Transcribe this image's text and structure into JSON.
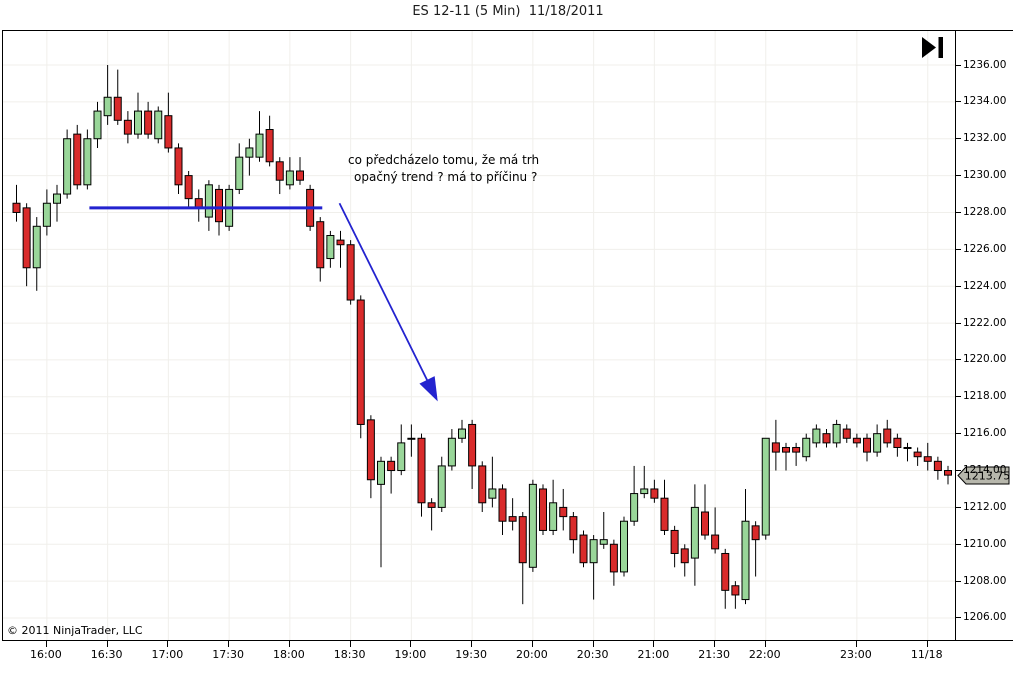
{
  "title": "ES 12-11 (5 Min)  11/18/2011",
  "copyright": "© 2011 NinjaTrader, LLC",
  "price_badge": "1213.75",
  "annotation": {
    "line1": "co předcházelo tomu, že má trh",
    "line2": "opačný trend ? má to příčinu ?"
  },
  "colors": {
    "up_fill": "#99d699",
    "down_fill": "#d92b2b",
    "outline": "#000000",
    "wick": "#000000",
    "grid": "#f0efeb",
    "drawing_blue": "#2323cf",
    "badge_bg": "#b7b7ac",
    "background": "#ffffff",
    "axis_text": "#000000"
  },
  "chart_data": {
    "type": "candlestick",
    "title": "ES 12-11 (5 Min)  11/18/2011",
    "instrument": "ES 12-11",
    "interval": "5 Min",
    "date": "11/18/2011",
    "grid": true,
    "y_axis": {
      "side": "right",
      "min": 1206.0,
      "max": 1236.0,
      "step": 2.0,
      "ticks": [
        "1236.00",
        "1234.00",
        "1232.00",
        "1230.00",
        "1228.00",
        "1226.00",
        "1224.00",
        "1222.00",
        "1220.00",
        "1218.00",
        "1216.00",
        "1214.00",
        "1212.00",
        "1210.00",
        "1208.00",
        "1206.00"
      ],
      "last_price": 1213.75
    },
    "x_axis": {
      "labels": [
        {
          "text": "16:00",
          "index": 3
        },
        {
          "text": "16:30",
          "index": 9
        },
        {
          "text": "17:00",
          "index": 15
        },
        {
          "text": "17:30",
          "index": 21
        },
        {
          "text": "18:00",
          "index": 27
        },
        {
          "text": "18:30",
          "index": 33
        },
        {
          "text": "19:00",
          "index": 39
        },
        {
          "text": "19:30",
          "index": 45
        },
        {
          "text": "20:00",
          "index": 51
        },
        {
          "text": "20:30",
          "index": 57
        },
        {
          "text": "21:00",
          "index": 63
        },
        {
          "text": "21:30",
          "index": 69
        },
        {
          "text": "22:00",
          "index": 74
        },
        {
          "text": "23:00",
          "index": 83
        },
        {
          "text": "11/18",
          "index": 90
        }
      ]
    },
    "drawings": {
      "hline": {
        "price": 1228.25,
        "from_index": 7.2,
        "to_index": 30.2
      },
      "arrow": {
        "from": {
          "index": 31.9,
          "price": 1228.5
        },
        "to": {
          "index": 41.6,
          "price": 1217.75
        }
      }
    },
    "candles_ohlc": [
      [
        1228.5,
        1229.5,
        1227.5,
        1228.0
      ],
      [
        1228.25,
        1228.5,
        1224.0,
        1225.0
      ],
      [
        1225.0,
        1227.75,
        1223.75,
        1227.25
      ],
      [
        1227.25,
        1229.25,
        1226.75,
        1228.5
      ],
      [
        1228.5,
        1229.5,
        1227.5,
        1229.0
      ],
      [
        1229.0,
        1232.5,
        1228.75,
        1232.0
      ],
      [
        1232.25,
        1232.75,
        1229.25,
        1229.5
      ],
      [
        1229.5,
        1232.5,
        1229.25,
        1232.0
      ],
      [
        1232.0,
        1234.0,
        1231.5,
        1233.5
      ],
      [
        1233.25,
        1236.0,
        1232.75,
        1234.25
      ],
      [
        1234.25,
        1235.75,
        1232.75,
        1233.0
      ],
      [
        1233.0,
        1233.5,
        1231.75,
        1232.25
      ],
      [
        1232.25,
        1234.5,
        1232.0,
        1233.5
      ],
      [
        1233.5,
        1234.0,
        1232.0,
        1232.25
      ],
      [
        1232.0,
        1233.75,
        1231.75,
        1233.5
      ],
      [
        1233.25,
        1234.5,
        1231.25,
        1231.5
      ],
      [
        1231.5,
        1231.75,
        1229.0,
        1229.5
      ],
      [
        1230.0,
        1230.25,
        1228.25,
        1228.75
      ],
      [
        1228.75,
        1229.25,
        1227.5,
        1228.25
      ],
      [
        1227.75,
        1229.75,
        1227.0,
        1229.5
      ],
      [
        1229.25,
        1229.5,
        1226.75,
        1227.5
      ],
      [
        1227.25,
        1229.5,
        1227.0,
        1229.25
      ],
      [
        1229.25,
        1231.75,
        1229.0,
        1231.0
      ],
      [
        1231.0,
        1232.0,
        1230.0,
        1231.5
      ],
      [
        1231.0,
        1233.5,
        1230.75,
        1232.25
      ],
      [
        1232.5,
        1233.25,
        1230.5,
        1230.75
      ],
      [
        1230.75,
        1231.0,
        1229.0,
        1229.75
      ],
      [
        1229.5,
        1231.0,
        1229.25,
        1230.25
      ],
      [
        1230.25,
        1231.0,
        1229.5,
        1229.75
      ],
      [
        1229.25,
        1229.5,
        1227.0,
        1227.25
      ],
      [
        1227.5,
        1227.75,
        1224.25,
        1225.0
      ],
      [
        1225.5,
        1227.0,
        1225.0,
        1226.75
      ],
      [
        1226.5,
        1227.0,
        1225.0,
        1226.25
      ],
      [
        1226.25,
        1226.5,
        1223.0,
        1223.25
      ],
      [
        1223.25,
        1223.5,
        1215.75,
        1216.5
      ],
      [
        1216.75,
        1217.0,
        1212.5,
        1213.5
      ],
      [
        1213.25,
        1214.75,
        1208.75,
        1214.5
      ],
      [
        1214.5,
        1214.75,
        1212.75,
        1214.0
      ],
      [
        1214.0,
        1216.5,
        1213.75,
        1215.5
      ],
      [
        1215.75,
        1216.5,
        1214.75,
        1215.75
      ],
      [
        1215.75,
        1216.0,
        1211.5,
        1212.25
      ],
      [
        1212.25,
        1212.5,
        1210.75,
        1212.0
      ],
      [
        1212.0,
        1214.75,
        1211.75,
        1214.25
      ],
      [
        1214.25,
        1216.25,
        1214.0,
        1215.75
      ],
      [
        1215.75,
        1216.75,
        1215.5,
        1216.25
      ],
      [
        1216.5,
        1216.75,
        1213.0,
        1214.25
      ],
      [
        1214.25,
        1214.5,
        1211.75,
        1212.25
      ],
      [
        1212.5,
        1214.75,
        1212.0,
        1213.0
      ],
      [
        1213.0,
        1213.25,
        1210.5,
        1211.25
      ],
      [
        1211.5,
        1212.5,
        1210.75,
        1211.25
      ],
      [
        1211.5,
        1211.75,
        1206.75,
        1209.0
      ],
      [
        1208.75,
        1213.5,
        1208.5,
        1213.25
      ],
      [
        1213.0,
        1213.25,
        1210.5,
        1210.75
      ],
      [
        1210.75,
        1213.5,
        1210.5,
        1212.25
      ],
      [
        1212.0,
        1213.0,
        1210.75,
        1211.5
      ],
      [
        1211.5,
        1211.75,
        1209.5,
        1210.25
      ],
      [
        1210.5,
        1210.75,
        1208.75,
        1209.0
      ],
      [
        1209.0,
        1210.5,
        1207.0,
        1210.25
      ],
      [
        1210.0,
        1211.75,
        1209.75,
        1210.25
      ],
      [
        1210.0,
        1210.25,
        1207.75,
        1208.5
      ],
      [
        1208.5,
        1211.5,
        1208.25,
        1211.25
      ],
      [
        1211.25,
        1214.25,
        1211.0,
        1212.75
      ],
      [
        1212.75,
        1214.25,
        1212.5,
        1213.0
      ],
      [
        1213.0,
        1213.5,
        1212.25,
        1212.5
      ],
      [
        1212.5,
        1213.5,
        1210.5,
        1210.75
      ],
      [
        1210.75,
        1211.0,
        1208.75,
        1209.5
      ],
      [
        1209.75,
        1210.0,
        1208.25,
        1209.0
      ],
      [
        1209.25,
        1213.25,
        1207.75,
        1212.0
      ],
      [
        1211.75,
        1213.25,
        1210.25,
        1210.5
      ],
      [
        1210.5,
        1212.0,
        1209.5,
        1209.75
      ],
      [
        1209.5,
        1209.75,
        1206.5,
        1207.5
      ],
      [
        1207.75,
        1208.0,
        1206.5,
        1207.25
      ],
      [
        1207.0,
        1213.0,
        1206.75,
        1211.25
      ],
      [
        1211.0,
        1211.25,
        1208.25,
        1210.25
      ],
      [
        1210.5,
        1215.75,
        1210.25,
        1215.75
      ],
      [
        1215.5,
        1216.75,
        1214.0,
        1215.0
      ],
      [
        1215.25,
        1215.5,
        1214.0,
        1215.0
      ],
      [
        1215.25,
        1215.5,
        1214.25,
        1215.0
      ],
      [
        1214.75,
        1216.0,
        1214.5,
        1215.75
      ],
      [
        1215.5,
        1216.5,
        1215.25,
        1216.25
      ],
      [
        1216.0,
        1216.25,
        1215.25,
        1215.5
      ],
      [
        1215.5,
        1216.75,
        1215.25,
        1216.5
      ],
      [
        1216.25,
        1216.5,
        1215.5,
        1215.75
      ],
      [
        1215.75,
        1216.0,
        1215.25,
        1215.5
      ],
      [
        1215.75,
        1216.0,
        1214.5,
        1215.0
      ],
      [
        1215.0,
        1216.5,
        1214.75,
        1216.0
      ],
      [
        1216.25,
        1216.75,
        1215.25,
        1215.5
      ],
      [
        1215.75,
        1216.0,
        1214.75,
        1215.25
      ],
      [
        1215.25,
        1215.5,
        1214.5,
        1215.25
      ],
      [
        1215.0,
        1215.25,
        1214.25,
        1214.75
      ],
      [
        1214.75,
        1215.5,
        1214.0,
        1214.5
      ],
      [
        1214.5,
        1214.75,
        1213.5,
        1214.0
      ],
      [
        1214.0,
        1214.25,
        1213.25,
        1213.75
      ]
    ]
  }
}
